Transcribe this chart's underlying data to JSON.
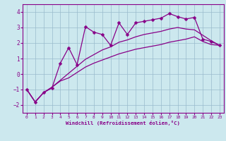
{
  "xlabel": "Windchill (Refroidissement éolien,°C)",
  "x": [
    0,
    1,
    2,
    3,
    4,
    5,
    6,
    7,
    8,
    9,
    10,
    11,
    12,
    13,
    14,
    15,
    16,
    17,
    18,
    19,
    20,
    21,
    22,
    23
  ],
  "line_jagged": [
    -1.0,
    -1.8,
    -1.2,
    -0.9,
    0.7,
    1.7,
    0.6,
    3.05,
    2.7,
    2.55,
    1.85,
    3.3,
    2.55,
    3.3,
    3.4,
    3.5,
    3.6,
    3.9,
    3.7,
    3.55,
    3.65,
    2.25,
    2.1,
    1.85
  ],
  "line_upper": [
    -1.0,
    -1.8,
    -1.2,
    -0.85,
    -0.4,
    0.05,
    0.5,
    0.95,
    1.25,
    1.55,
    1.75,
    2.05,
    2.2,
    2.4,
    2.55,
    2.65,
    2.75,
    2.9,
    3.0,
    2.9,
    2.85,
    2.5,
    2.15,
    1.85
  ],
  "line_lower": [
    -1.0,
    -1.8,
    -1.2,
    -0.85,
    -0.45,
    -0.25,
    0.1,
    0.45,
    0.7,
    0.9,
    1.1,
    1.3,
    1.45,
    1.6,
    1.7,
    1.8,
    1.9,
    2.05,
    2.15,
    2.25,
    2.4,
    2.1,
    1.9,
    1.85
  ],
  "line_color": "#880088",
  "bg_color": "#cce8ee",
  "grid_color": "#99bbcc",
  "ylim": [
    -2.5,
    4.5
  ],
  "xlim": [
    -0.5,
    23.5
  ],
  "yticks": [
    -2,
    -1,
    0,
    1,
    2,
    3,
    4
  ],
  "xticks": [
    0,
    1,
    2,
    3,
    4,
    5,
    6,
    7,
    8,
    9,
    10,
    11,
    12,
    13,
    14,
    15,
    16,
    17,
    18,
    19,
    20,
    21,
    22,
    23
  ],
  "marker_size": 2.5,
  "line_width": 0.9
}
